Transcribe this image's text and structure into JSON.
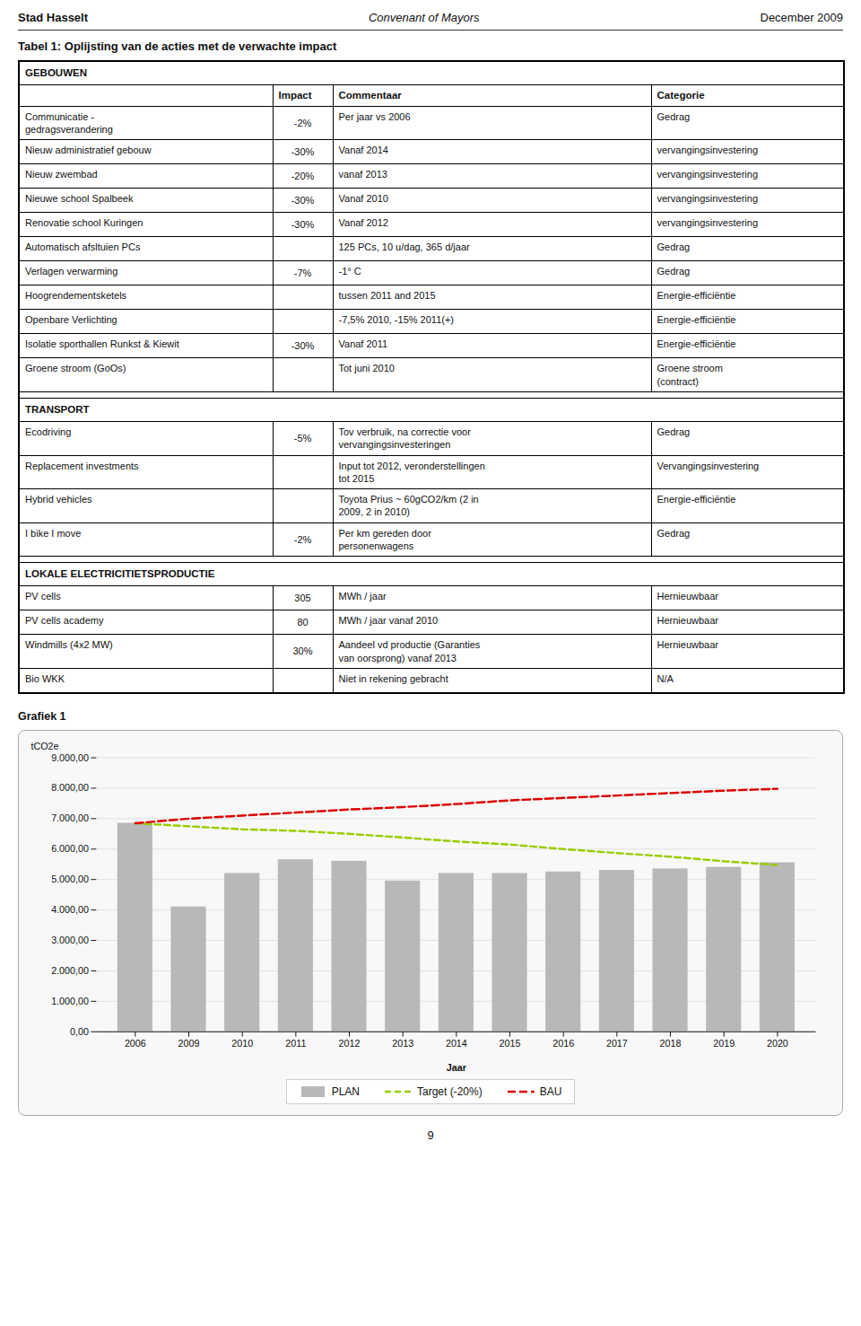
{
  "header": {
    "left": "Stad Hasselt",
    "center": "Convenant of Mayors",
    "right": "December 2009"
  },
  "table": {
    "title": "Tabel 1: Oplijsting van de acties met de verwachte impact",
    "columns": [
      "Impact",
      "Commentaar",
      "Categorie"
    ],
    "sections": [
      {
        "header": "GEBOUWEN",
        "rows": [
          [
            "Communicatie -\ngedragsverandering",
            "-2%",
            "Per jaar vs 2006",
            "Gedrag"
          ],
          [
            "Nieuw administratief gebouw",
            "-30%",
            "Vanaf 2014",
            "vervangingsinvestering"
          ],
          [
            "Nieuw zwembad",
            "-20%",
            "vanaf 2013",
            "vervangingsinvestering"
          ],
          [
            "Nieuwe school Spalbeek",
            "-30%",
            "Vanaf 2010",
            "vervangingsinvestering"
          ],
          [
            "Renovatie school Kuringen",
            "-30%",
            "Vanaf 2012",
            "vervangingsinvestering"
          ],
          [
            "Automatisch afsltuien PCs",
            null,
            "125 PCs, 10 u/dag, 365 d/jaar",
            "Gedrag"
          ],
          [
            "Verlagen verwarming",
            "-7%",
            "-1° C",
            "Gedrag"
          ],
          [
            "Hoogrendementsketels",
            null,
            "tussen 2011 and 2015",
            "Energie-efficiëntie"
          ],
          [
            "Openbare Verlichting",
            null,
            "-7,5% 2010, -15% 2011(+)",
            "Energie-efficiëntie"
          ],
          [
            "Isolatie sporthallen Runkst & Kiewit",
            "-30%",
            "Vanaf 2011",
            "Energie-efficiëntie"
          ],
          [
            "Groene stroom (GoOs)",
            null,
            "Tot juni 2010",
            "Groene stroom\n(contract)"
          ]
        ]
      },
      {
        "header": "TRANSPORT",
        "rows": [
          [
            "Ecodriving",
            "-5%",
            "Tov verbruik, na correctie voor\nvervangingsinvesteringen",
            "Gedrag"
          ],
          [
            "Replacement investments",
            null,
            "Input tot 2012, veronderstellingen\ntot  2015",
            "Vervangingsinvestering"
          ],
          [
            "Hybrid vehicles",
            null,
            "Toyota Prius ~ 60gCO2/km (2 in\n2009, 2 in 2010)",
            "Energie-efficiëntie"
          ],
          [
            "I bike I move",
            "-2%",
            "Per km gereden door\npersonenwagens",
            "Gedrag"
          ]
        ]
      },
      {
        "header": "LOKALE ELECTRICITIETSPRODUCTIE",
        "rows": [
          [
            "PV cells",
            "305",
            "MWh / jaar",
            "Hernieuwbaar"
          ],
          [
            "PV cells academy",
            "80",
            "MWh / jaar vanaf 2010",
            "Hernieuwbaar"
          ],
          [
            "Windmills (4x2 MW)",
            "30%",
            "Aandeel vd productie (Garanties\nvan oorsprong) vanaf 2013",
            "Hernieuwbaar"
          ],
          [
            "Bio WKK",
            null,
            "Niet in rekening gebracht",
            "N/A"
          ]
        ]
      }
    ]
  },
  "chart_data": {
    "type": "bar",
    "title": "Grafiek 1",
    "categories": [
      "2006",
      "2009",
      "2010",
      "2011",
      "2012",
      "2013",
      "2014",
      "2015",
      "2016",
      "2017",
      "2018",
      "2019",
      "2020"
    ],
    "series": [
      {
        "name": "PLAN",
        "type": "bar",
        "color": "#b8b8b8",
        "values": [
          6850,
          4100,
          5200,
          5650,
          5600,
          4950,
          5200,
          5200,
          5250,
          5300,
          5350,
          5400,
          5550
        ]
      },
      {
        "name": "Target (-20%)",
        "type": "line",
        "color": "#99cc00",
        "line_style": "dashed",
        "values": [
          6850,
          6750,
          6650,
          6600,
          6500,
          6380,
          6250,
          6150,
          6000,
          5870,
          5750,
          5600,
          5480
        ]
      },
      {
        "name": "BAU",
        "type": "line",
        "color": "#dd0000",
        "line_style": "dashed",
        "values": [
          6850,
          7000,
          7100,
          7200,
          7300,
          7380,
          7480,
          7600,
          7680,
          7760,
          7840,
          7920,
          7980
        ]
      }
    ],
    "x_label": "Jaar",
    "y_label": "tCO2e",
    "ylim": [
      0,
      9000
    ],
    "yticks": [
      {
        "value": 0,
        "label": "0,00"
      },
      {
        "value": 1000,
        "label": "1.000,00"
      },
      {
        "value": 2000,
        "label": "2.000,00"
      },
      {
        "value": 3000,
        "label": "3.000,00"
      },
      {
        "value": 4000,
        "label": "4.000,00"
      },
      {
        "value": 5000,
        "label": "5.000,00"
      },
      {
        "value": 6000,
        "label": "6.000,00"
      },
      {
        "value": 7000,
        "label": "7.000,00"
      },
      {
        "value": 8000,
        "label": "8.000,00"
      },
      {
        "value": 9000,
        "label": "9.000,00"
      }
    ],
    "grid": true,
    "legend": "bottom"
  },
  "page_number": 9
}
